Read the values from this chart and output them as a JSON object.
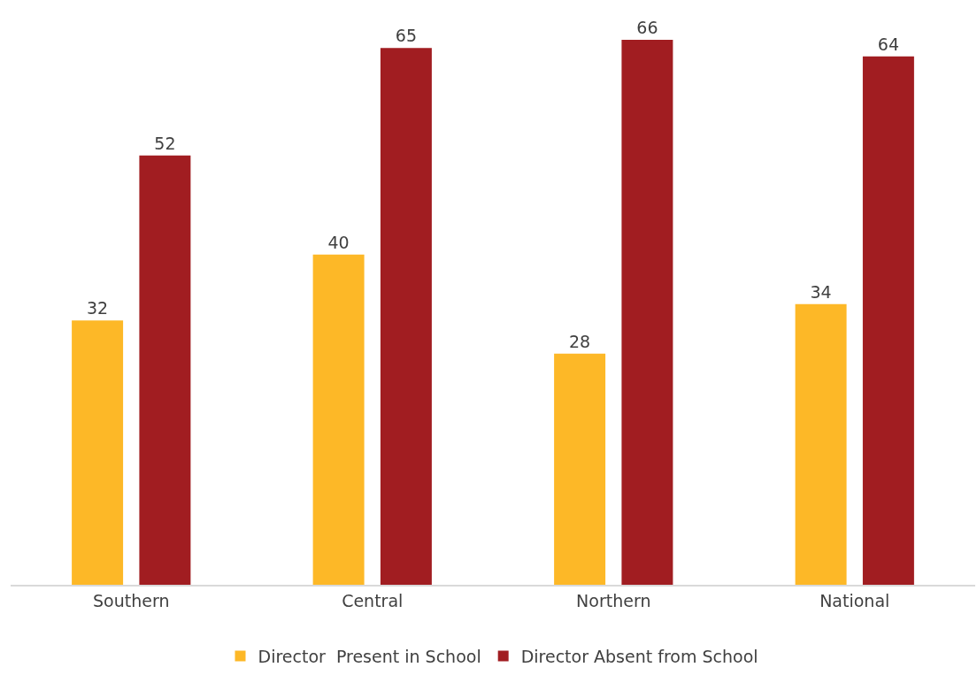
{
  "chart_data": {
    "type": "bar",
    "categories": [
      "Southern",
      "Central",
      "Northern",
      "National"
    ],
    "series": [
      {
        "name": "Director  Present in School",
        "color": "#fdb827",
        "values": [
          32,
          40,
          28,
          34
        ]
      },
      {
        "name": "Director Absent from School",
        "color": "#a11d21",
        "values": [
          52,
          65,
          66,
          64
        ]
      }
    ],
    "data_labels": true,
    "legend": "bottom",
    "tick_labels": "x"
  }
}
